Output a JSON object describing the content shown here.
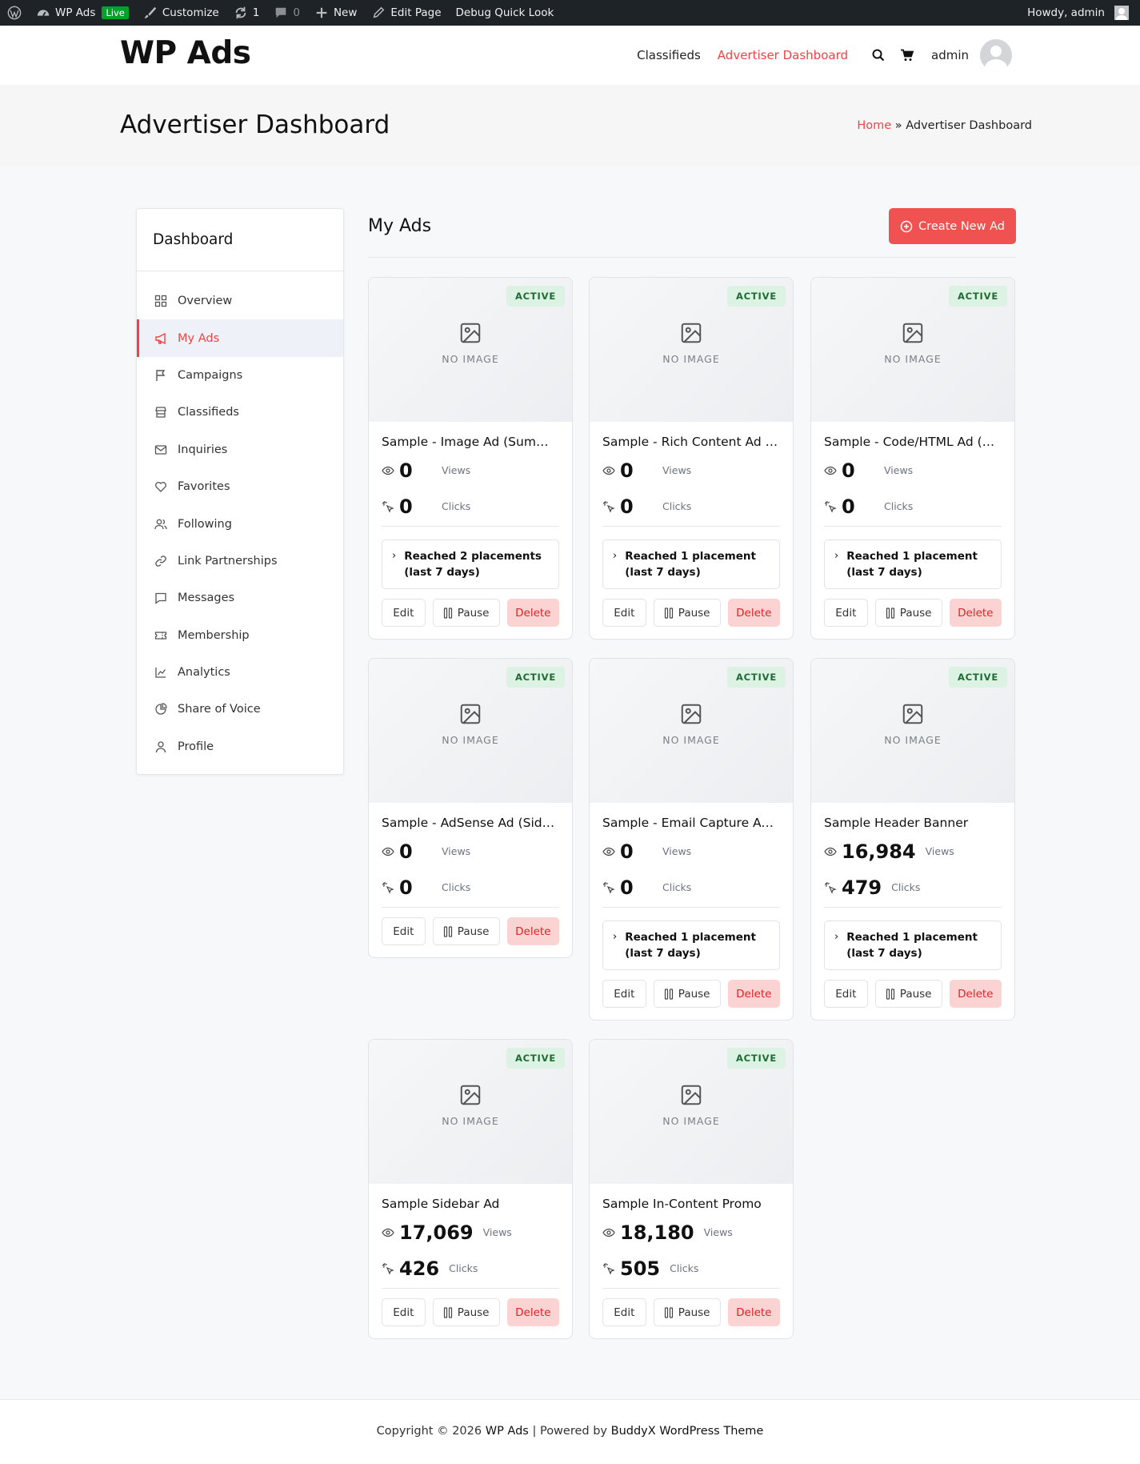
{
  "admin_bar": {
    "site_name": "WP Ads",
    "live_label": "Live",
    "customize": "Customize",
    "updates_count": "1",
    "comments_count": "0",
    "new_label": "New",
    "edit_page": "Edit Page",
    "debug": "Debug Quick Look",
    "howdy": "Howdy, admin"
  },
  "header": {
    "logo": "WP Ads",
    "nav": [
      "Classifieds",
      "Advertiser Dashboard"
    ],
    "user": "admin"
  },
  "page": {
    "title": "Advertiser Dashboard",
    "breadcrumb_home": "Home",
    "breadcrumb_sep": "»",
    "breadcrumb_current": "Advertiser Dashboard"
  },
  "sidebar": {
    "title": "Dashboard",
    "items": [
      {
        "label": "Overview",
        "icon": "grid-icon"
      },
      {
        "label": "My Ads",
        "icon": "megaphone-icon",
        "active": true
      },
      {
        "label": "Campaigns",
        "icon": "flag-icon"
      },
      {
        "label": "Classifieds",
        "icon": "store-icon"
      },
      {
        "label": "Inquiries",
        "icon": "mail-icon"
      },
      {
        "label": "Favorites",
        "icon": "heart-icon"
      },
      {
        "label": "Following",
        "icon": "users-icon"
      },
      {
        "label": "Link Partnerships",
        "icon": "link-icon"
      },
      {
        "label": "Messages",
        "icon": "chat-icon"
      },
      {
        "label": "Membership",
        "icon": "ticket-icon"
      },
      {
        "label": "Analytics",
        "icon": "chart-icon"
      },
      {
        "label": "Share of Voice",
        "icon": "pie-icon"
      },
      {
        "label": "Profile",
        "icon": "user-icon"
      }
    ]
  },
  "main": {
    "title": "My Ads",
    "create_label": "Create New Ad"
  },
  "card_labels": {
    "no_image": "NO IMAGE",
    "views": "Views",
    "clicks": "Clicks",
    "edit": "Edit",
    "pause": "Pause",
    "delete": "Delete"
  },
  "ads": [
    {
      "title": "Sample - Image Ad (Summer ...",
      "status": "ACTIVE",
      "views": "0",
      "clicks": "0",
      "reach": "Reached 2 placements (last 7 days)"
    },
    {
      "title": "Sample - Rich Content Ad (Fe...",
      "status": "ACTIVE",
      "views": "0",
      "clicks": "0",
      "reach": "Reached 1 placement (last 7 days)"
    },
    {
      "title": "Sample - Code/HTML Ad (Cus...",
      "status": "ACTIVE",
      "views": "0",
      "clicks": "0",
      "reach": "Reached 1 placement (last 7 days)"
    },
    {
      "title": "Sample - AdSense Ad (Sidebar)",
      "status": "ACTIVE",
      "views": "0",
      "clicks": "0",
      "reach": null
    },
    {
      "title": "Sample - Email Capture Ad (...",
      "status": "ACTIVE",
      "views": "0",
      "clicks": "0",
      "reach": "Reached 1 placement (last 7 days)"
    },
    {
      "title": "Sample Header Banner",
      "status": "ACTIVE",
      "views": "16,984",
      "clicks": "479",
      "reach": "Reached 1 placement (last 7 days)"
    },
    {
      "title": "Sample Sidebar Ad",
      "status": "ACTIVE",
      "views": "17,069",
      "clicks": "426",
      "reach": null
    },
    {
      "title": "Sample In-Content Promo",
      "status": "ACTIVE",
      "views": "18,180",
      "clicks": "505",
      "reach": null
    }
  ],
  "footer": {
    "prefix": "Copyright © 2026 ",
    "site": "WP Ads",
    "middle": " | Powered by ",
    "theme": "BuddyX WordPress Theme"
  },
  "colors": {
    "accent": "#ef4444",
    "button": "#f05252",
    "badge_bg": "#dcf3e3",
    "badge_text": "#1f6b35"
  }
}
